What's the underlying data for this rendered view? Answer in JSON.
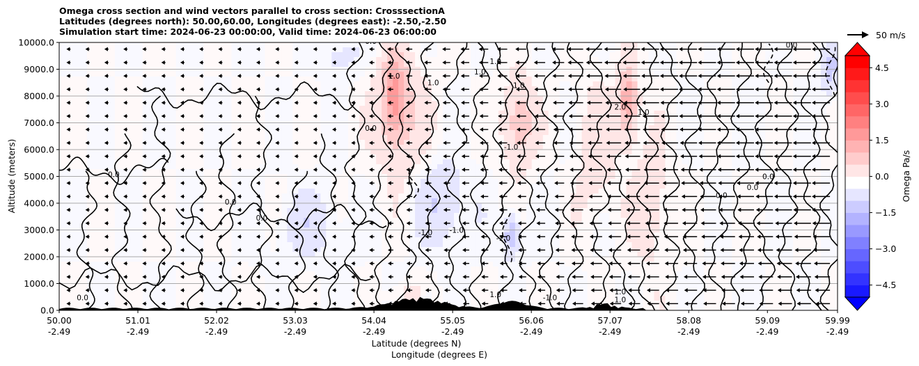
{
  "titles": {
    "line1": "Omega cross section and wind vectors parallel to cross section: CrosssectionA",
    "line2": "Latitudes (degrees north): 50.00,60.00, Longitudes (degrees east): -2.50,-2.50",
    "line3": "Simulation start time: 2024-06-23 00:00:00, Valid time: 2024-06-23 06:00:00"
  },
  "chart_data": {
    "type": "heatmap",
    "subtype": "filled contour with wind vectors",
    "ylabel": "Altitude (meters)",
    "xlabel_lat": "Latitude (degrees N)",
    "xlabel_lon": "Longitude (degrees E)",
    "ylim": [
      0,
      10000
    ],
    "y_ticks": [
      "0.0",
      "1000.0",
      "2000.0",
      "3000.0",
      "4000.0",
      "5000.0",
      "6000.0",
      "7000.0",
      "8000.0",
      "9000.0",
      "10000.0"
    ],
    "y_tick_values": [
      0,
      1000,
      2000,
      3000,
      4000,
      5000,
      6000,
      7000,
      8000,
      9000,
      10000
    ],
    "grid": "horizontal",
    "x_ticks": [
      {
        "lat": "50.00",
        "lon": "-2.49"
      },
      {
        "lat": "51.01",
        "lon": "-2.49"
      },
      {
        "lat": "52.02",
        "lon": "-2.49"
      },
      {
        "lat": "53.03",
        "lon": "-2.49"
      },
      {
        "lat": "54.04",
        "lon": "-2.49"
      },
      {
        "lat": "55.05",
        "lon": "-2.49"
      },
      {
        "lat": "56.06",
        "lon": "-2.49"
      },
      {
        "lat": "57.07",
        "lon": "-2.49"
      },
      {
        "lat": "58.08",
        "lon": "-2.49"
      },
      {
        "lat": "59.09",
        "lon": "-2.49"
      },
      {
        "lat": "59.99",
        "lon": "-2.49"
      }
    ],
    "xlim_lat": [
      50.0,
      59.99
    ],
    "colorbar": {
      "label": "Omega Pa/s",
      "ticks": [
        "4.5",
        "3.0",
        "1.5",
        "0.0",
        "−1.5",
        "−3.0",
        "−4.5"
      ],
      "tick_values": [
        4.5,
        3.0,
        1.5,
        0.0,
        -1.5,
        -3.0,
        -4.5
      ],
      "range": [
        -5,
        5
      ],
      "extend": "both",
      "cmap": "bwr",
      "positive_color": "#ff0000",
      "negative_color": "#0000ff"
    },
    "vector_key": {
      "label": "50 m/s",
      "speed": 50
    },
    "contour_labels": [
      {
        "text": "0.0",
        "lat": 50.7,
        "alt": 4980
      },
      {
        "text": "0.0",
        "lat": 52.2,
        "alt": 3950
      },
      {
        "text": "0.0",
        "lat": 52.6,
        "alt": 3350
      },
      {
        "text": "0.0",
        "lat": 54.0,
        "alt": 9950
      },
      {
        "text": "0.0",
        "lat": 54.0,
        "alt": 6700
      },
      {
        "text": "1.0",
        "lat": 54.3,
        "alt": 8650
      },
      {
        "text": "1.0",
        "lat": 54.8,
        "alt": 8400
      },
      {
        "text": "1.0",
        "lat": 55.4,
        "alt": 8800
      },
      {
        "text": "1.0",
        "lat": 55.6,
        "alt": 9200
      },
      {
        "text": "1.0",
        "lat": 55.9,
        "alt": 8300
      },
      {
        "text": "-1.0",
        "lat": 55.8,
        "alt": 6000
      },
      {
        "text": "-1.0",
        "lat": 54.7,
        "alt": 2800
      },
      {
        "text": "-1.0",
        "lat": 55.1,
        "alt": 2900
      },
      {
        "text": "-1.0",
        "lat": 55.7,
        "alt": 2600
      },
      {
        "text": "1.0",
        "lat": 55.6,
        "alt": 500
      },
      {
        "text": "-1.0",
        "lat": 56.3,
        "alt": 380
      },
      {
        "text": "1.0",
        "lat": 57.2,
        "alt": 600
      },
      {
        "text": "1.0",
        "lat": 57.2,
        "alt": 300
      },
      {
        "text": "2.0",
        "lat": 57.2,
        "alt": 7500
      },
      {
        "text": "1.0",
        "lat": 57.5,
        "alt": 7300
      },
      {
        "text": "0.0",
        "lat": 59.4,
        "alt": 9800
      },
      {
        "text": "0.0",
        "lat": 50.3,
        "alt": 380
      },
      {
        "text": "0.0",
        "lat": 58.5,
        "alt": 4200
      },
      {
        "text": "0.0",
        "lat": 58.9,
        "alt": 4500
      },
      {
        "text": "0.0",
        "lat": 59.1,
        "alt": 4900
      }
    ],
    "black_contour_levels": [
      -1.0,
      0.0,
      1.0,
      2.0
    ],
    "terrain": "black filled orography along lower boundary, peaks near 54-56 N up to ~500 m"
  }
}
